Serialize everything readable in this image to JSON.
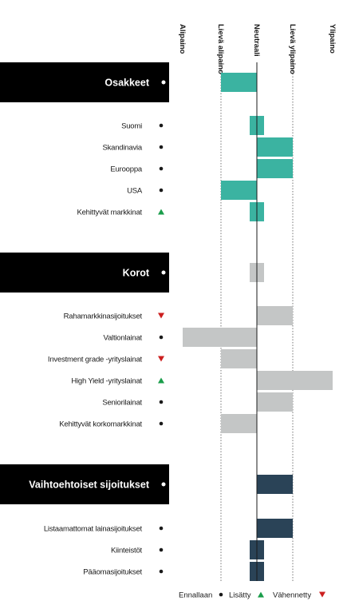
{
  "chart_data": {
    "type": "bar",
    "orientation": "horizontal",
    "x_scale": [
      "Alipaino",
      "Lievä alipaino",
      "Neutraali",
      "Lievä ylipaino",
      "Ylipaino"
    ],
    "x_range": [
      -2,
      2
    ],
    "status_legend": [
      {
        "key": "unchanged",
        "label": "Ennallaan",
        "symbol": "●",
        "color": "#1a1a1a"
      },
      {
        "key": "increased",
        "label": "Lisätty",
        "symbol": "▲",
        "color": "#1a9d4a"
      },
      {
        "key": "decreased",
        "label": "Vähennetty",
        "symbol": "▼",
        "color": "#cc1f1f"
      }
    ],
    "groups": [
      {
        "title": "Osakkeet",
        "status": "unchanged",
        "value": -1,
        "color": "#3bb3a1",
        "items": [
          {
            "label": "Suomi",
            "status": "unchanged",
            "value": 0,
            "color": "#3bb3a1"
          },
          {
            "label": "Skandinavia",
            "status": "unchanged",
            "value": 1,
            "color": "#3bb3a1"
          },
          {
            "label": "Eurooppa",
            "status": "unchanged",
            "value": 1,
            "color": "#3bb3a1"
          },
          {
            "label": "USA",
            "status": "unchanged",
            "value": -1,
            "color": "#3bb3a1"
          },
          {
            "label": "Kehittyvät markkinat",
            "status": "increased",
            "value": 0,
            "color": "#3bb3a1"
          }
        ]
      },
      {
        "title": "Korot",
        "status": "unchanged",
        "value": 0,
        "color": "#c4c6c6",
        "items": [
          {
            "label": "Rahamarkkinasijoitukset",
            "status": "decreased",
            "value": 1,
            "color": "#c4c6c6"
          },
          {
            "label": "Valtionlainat",
            "status": "unchanged",
            "value": -2,
            "color": "#c4c6c6"
          },
          {
            "label": "Investment grade -yrityslainat",
            "status": "decreased",
            "value": -1,
            "color": "#c4c6c6"
          },
          {
            "label": "High Yield -yrityslainat",
            "status": "increased",
            "value": 2,
            "color": "#c4c6c6"
          },
          {
            "label": "Seniorilainat",
            "status": "unchanged",
            "value": 1,
            "color": "#c4c6c6"
          },
          {
            "label": "Kehittyvät korkomarkkinat",
            "status": "unchanged",
            "value": -1,
            "color": "#c4c6c6"
          }
        ]
      },
      {
        "title": "Vaihtoehtoiset sijoitukset",
        "status": "unchanged",
        "value": 1,
        "color": "#2a4357",
        "items": [
          {
            "label": "Listaamattomat lainasijoitukset",
            "status": "unchanged",
            "value": 1,
            "color": "#2a4357"
          },
          {
            "label": "Kiinteistöt",
            "status": "unchanged",
            "value": 0,
            "color": "#2a4357"
          },
          {
            "label": "Pääomasijoitukset",
            "status": "unchanged",
            "value": 0,
            "color": "#2a4357"
          }
        ]
      }
    ]
  }
}
